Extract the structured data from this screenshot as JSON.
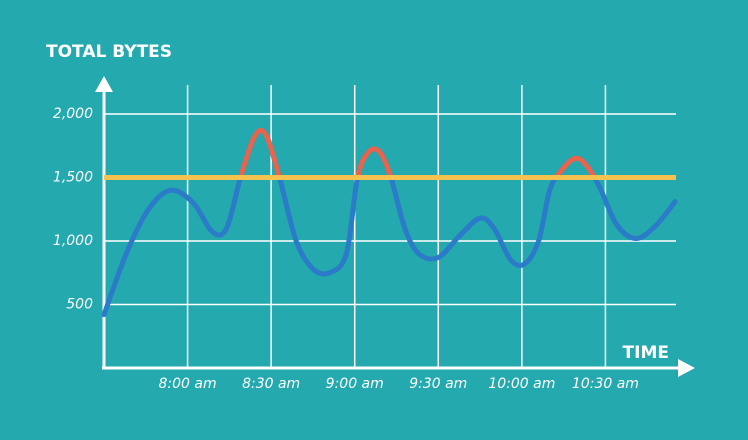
{
  "chart_data": {
    "type": "line",
    "y_label": "TOTAL BYTES",
    "x_label": "TIME",
    "x": [
      450,
      458,
      466,
      474,
      482,
      489,
      494,
      499,
      504,
      508,
      513,
      519,
      525,
      531,
      537,
      541,
      545,
      549,
      553,
      558,
      563,
      570,
      578,
      585,
      590,
      596,
      601,
      606,
      610,
      614,
      619,
      623,
      628,
      634,
      641,
      648,
      655
    ],
    "series": [
      {
        "color": "#2b7bc9",
        "above_color": "#e8644c",
        "values": [
          420,
          900,
          1250,
          1400,
          1300,
          1070,
          1100,
          1500,
          1820,
          1840,
          1500,
          1000,
          780,
          750,
          900,
          1500,
          1700,
          1700,
          1500,
          1100,
          900,
          870,
          1050,
          1180,
          1100,
          850,
          820,
          1000,
          1400,
          1550,
          1650,
          1600,
          1420,
          1130,
          1020,
          1120,
          1310
        ]
      }
    ],
    "threshold": 1500,
    "threshold_color": "#f3c24f",
    "xlim": [
      450,
      660
    ],
    "ylim": [
      0,
      2200
    ],
    "xticks": [
      {
        "value": 480,
        "label": "8:00 am"
      },
      {
        "value": 510,
        "label": "8:30 am"
      },
      {
        "value": 540,
        "label": "9:00 am"
      },
      {
        "value": 570,
        "label": "9:30 am"
      },
      {
        "value": 600,
        "label": "10:00 am"
      },
      {
        "value": 630,
        "label": "10:30 am"
      }
    ],
    "yticks": [
      500,
      {
        "value": 1000,
        "label": "1,000"
      },
      {
        "value": 1500,
        "label": "1,500"
      },
      {
        "value": 2000,
        "label": "2,000"
      }
    ],
    "grid": true
  }
}
